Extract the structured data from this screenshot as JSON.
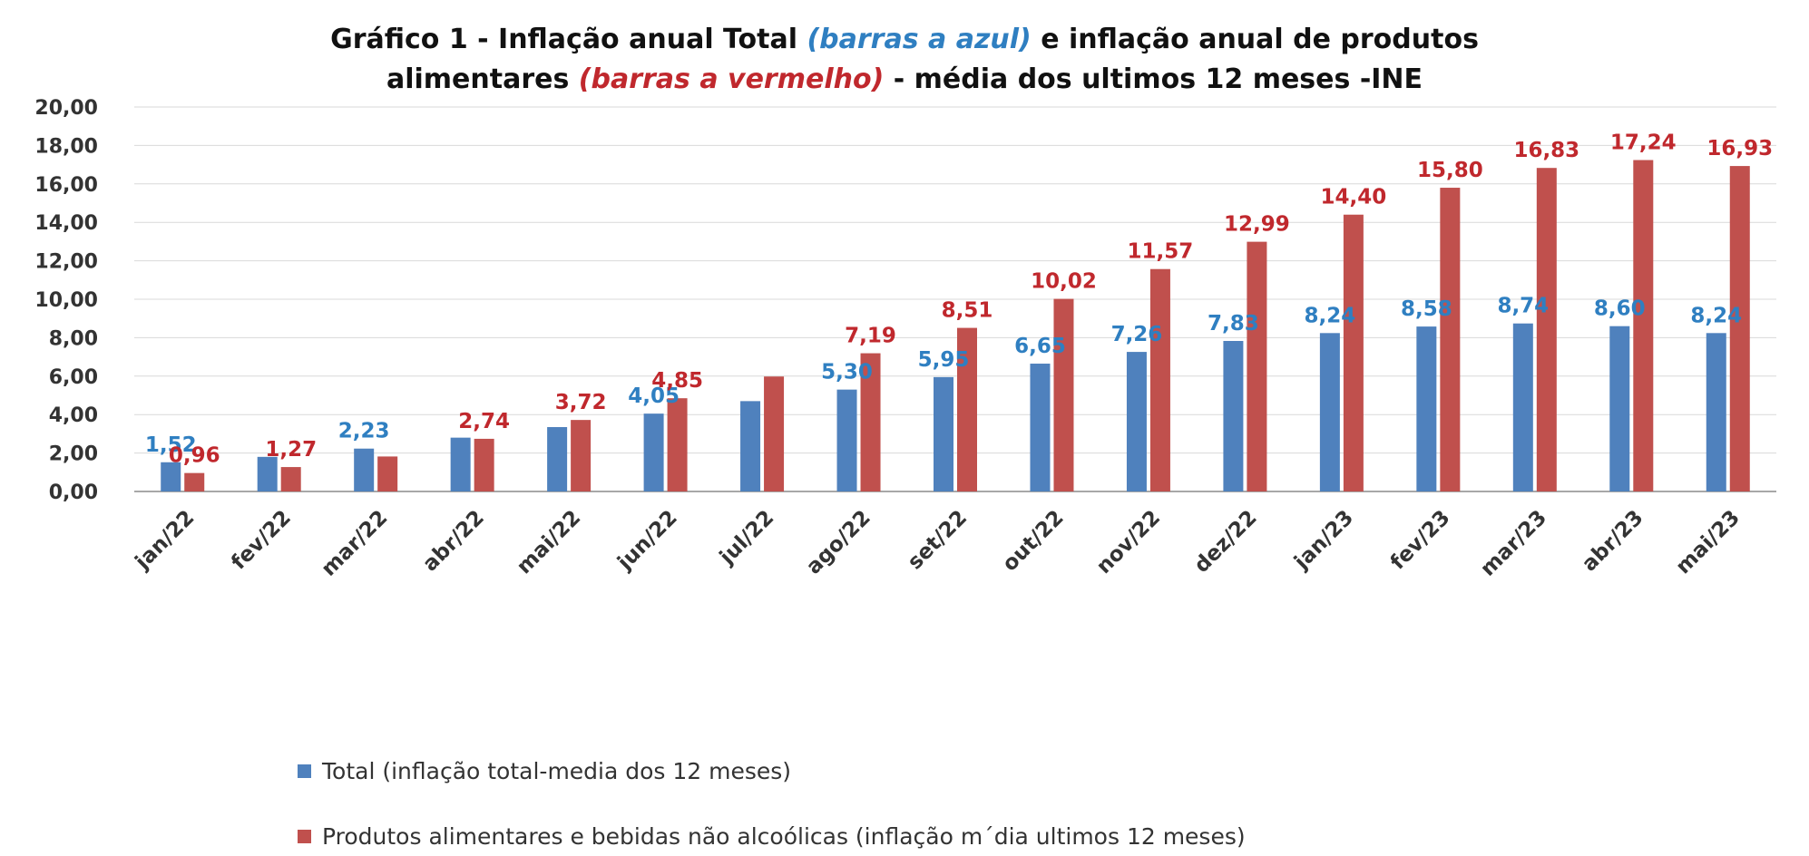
{
  "title": {
    "part1": "Gráfico 1 - Inflação anual Total ",
    "part2": "(barras a azul)",
    "part3": " e inflação anual de produtos",
    "part4": "alimentares ",
    "part5": "(barras a vermelho)",
    "part6": " - média dos ultimos 12 meses -INE"
  },
  "colors": {
    "total": "#4f81bd",
    "food": "#c0504d",
    "total_label": "#2f7fc1",
    "food_label": "#c0282d"
  },
  "chart_data": {
    "type": "bar",
    "title": "Gráfico 1 - Inflação anual Total (barras a azul) e inflação anual de produtos alimentares (barras a vermelho) - média dos ultimos 12 meses -INE",
    "categories": [
      "jan/22",
      "fev/22",
      "mar/22",
      "abr/22",
      "mai/22",
      "jun/22",
      "jul/22",
      "ago/22",
      "set/22",
      "out/22",
      "nov/22",
      "dez/22",
      "jan/23",
      "fev/23",
      "mar/23",
      "abr/23",
      "mai/23"
    ],
    "series": [
      {
        "name": "Total (inflação total-media dos 12 meses)",
        "values": [
          1.52,
          1.8,
          2.23,
          2.8,
          3.35,
          4.05,
          4.7,
          5.3,
          5.95,
          6.65,
          7.26,
          7.83,
          8.24,
          8.58,
          8.74,
          8.6,
          8.24
        ],
        "labels": [
          "1,52",
          "",
          "2,23",
          "",
          "",
          "4,05",
          "",
          "5,30",
          "5,95",
          "6,65",
          "7,26",
          "7,83",
          "8,24",
          "8,58",
          "8,74",
          "8,60",
          "8,24"
        ]
      },
      {
        "name": "Produtos alimentares e bebidas não alcoólicas (inflação m´dia ultimos 12 meses)",
        "values": [
          0.96,
          1.27,
          1.82,
          2.74,
          3.72,
          4.85,
          5.98,
          7.19,
          8.51,
          10.02,
          11.57,
          12.99,
          14.4,
          15.8,
          16.83,
          17.24,
          16.93
        ],
        "labels": [
          "0,96",
          "1,27",
          "",
          "2,74",
          "3,72",
          "4,85",
          "",
          "7,19",
          "8,51",
          "10,02",
          "11,57",
          "12,99",
          "14,40",
          "15,80",
          "16,83",
          "17,24",
          "16,93"
        ]
      }
    ],
    "ylim": [
      0,
      20
    ],
    "yticks": [
      "0,00",
      "2,00",
      "4,00",
      "6,00",
      "8,00",
      "10,00",
      "12,00",
      "14,00",
      "16,00",
      "18,00",
      "20,00"
    ],
    "grid": true,
    "legend": "bottom"
  }
}
